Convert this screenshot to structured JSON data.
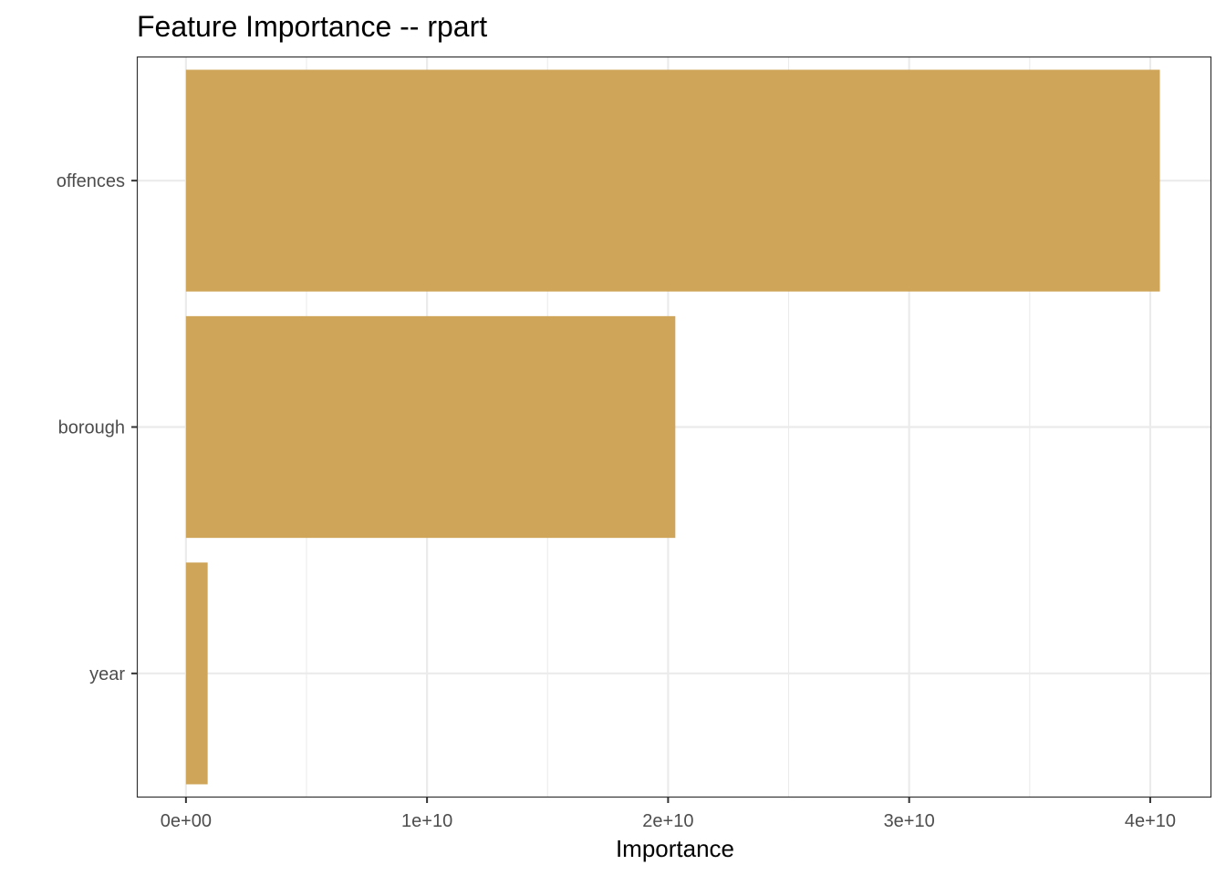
{
  "chart_data": {
    "type": "bar",
    "orientation": "horizontal",
    "title": "Feature Importance -- rpart",
    "xlabel": "Importance",
    "ylabel": "",
    "categories": [
      "offences",
      "borough",
      "year"
    ],
    "values": [
      40400000000,
      20300000000,
      900000000
    ],
    "xlim": [
      -2000000000,
      42500000000
    ],
    "x_ticks": [
      0,
      10000000000,
      20000000000,
      30000000000,
      40000000000
    ],
    "x_tick_labels": [
      "0e+00",
      "1e+10",
      "2e+10",
      "3e+10",
      "4e+10"
    ],
    "bar_color": "#CFA55A",
    "grid": true,
    "legend": "none"
  }
}
